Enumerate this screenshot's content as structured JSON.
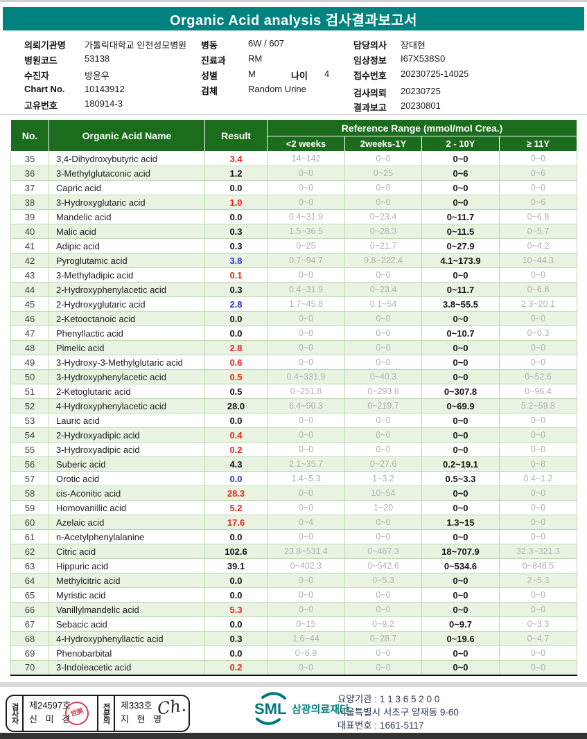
{
  "title": "Organic Acid analysis 검사결과보고서",
  "colors": {
    "teal": "#00827e",
    "header_green": "#1b6c1d",
    "row_green": "#e9f3e2",
    "grid_green": "#bcd9ae",
    "gray_ref": "#b0b0b0",
    "red": "#e8251d",
    "blue": "#2233cc",
    "navy": "#2c3a55",
    "seal_red": "#d04055"
  },
  "patient": {
    "col1": [
      {
        "label": "의뢰기관명",
        "value": "가톨릭대학교 인천성모병원"
      },
      {
        "label": "병원코드",
        "value": "53138"
      },
      {
        "label": "수진자",
        "value": "방윤우"
      },
      {
        "label": "Chart No.",
        "value": "10143912"
      },
      {
        "label": "고유번호",
        "value": "180914-3"
      }
    ],
    "col2": [
      {
        "label": "병동",
        "value": "6W / 607"
      },
      {
        "label": "진료과",
        "value": "RM"
      },
      {
        "label": "성별",
        "value": "M",
        "label2": "나이",
        "value2": "4"
      },
      {
        "label": "검체",
        "value": "Random Urine"
      }
    ],
    "col3": [
      {
        "label": "담당의사",
        "value": "장대현"
      },
      {
        "label": "임상정보",
        "value": "I67X538S0"
      },
      {
        "label": "접수번호",
        "value": "20230725-14025"
      },
      {
        "label": "검사의뢰",
        "value": "20230725"
      },
      {
        "label": "결과보고",
        "value": "20230801"
      }
    ]
  },
  "table": {
    "col_no": "No.",
    "col_name": "Organic Acid Name",
    "col_result": "Result",
    "ref_header": "Reference Range (mmol/mol Crea.)",
    "ref_cols": [
      "<2 weeks",
      "2weeks-1Y",
      "2 - 10Y",
      "≥ 11Y"
    ],
    "rows": [
      {
        "no": "35",
        "name": "3,4-Dihydroxybutyric acid",
        "result": "3.4",
        "flag": "red",
        "refs": [
          "14~142",
          "0~0",
          "0~0",
          "0~0"
        ]
      },
      {
        "no": "36",
        "name": "3-Methylglutaconic acid",
        "result": "1.2",
        "flag": "black",
        "refs": [
          "0~0",
          "0~25",
          "0~6",
          "0~6"
        ]
      },
      {
        "no": "37",
        "name": "Capric acid",
        "result": "0.0",
        "flag": "black",
        "refs": [
          "0~0",
          "0~0",
          "0~0",
          "0~0"
        ]
      },
      {
        "no": "38",
        "name": "3-Hydroxyglutaric acid",
        "result": "1.0",
        "flag": "red",
        "refs": [
          "0~0",
          "0~0",
          "0~0",
          "0~6"
        ]
      },
      {
        "no": "39",
        "name": "Mandelic acid",
        "result": "0.0",
        "flag": "black",
        "refs": [
          "0.4~31.9",
          "0~23.4",
          "0~11.7",
          "0~6.8"
        ]
      },
      {
        "no": "40",
        "name": "Malic acid",
        "result": "0.3",
        "flag": "black",
        "refs": [
          "1.5~36.5",
          "0~28.3",
          "0~11.5",
          "0~5.7"
        ]
      },
      {
        "no": "41",
        "name": "Adipic acid",
        "result": "0.3",
        "flag": "black",
        "refs": [
          "0~25",
          "0~21.7",
          "0~27.9",
          "0~4.2"
        ]
      },
      {
        "no": "42",
        "name": "Pyroglutamic acid",
        "result": "3.8",
        "flag": "blue",
        "refs": [
          "0.7~94.7",
          "9.8~222.4",
          "4.1~173.9",
          "10~44.3"
        ]
      },
      {
        "no": "43",
        "name": "3-Methyladipic acid",
        "result": "0.1",
        "flag": "red",
        "refs": [
          "0~0",
          "0~0",
          "0~0",
          "0~0"
        ]
      },
      {
        "no": "44",
        "name": "2-Hydroxyphenylacetic acid",
        "result": "0.3",
        "flag": "black",
        "refs": [
          "0.4~31.9",
          "0~23.4",
          "0~11.7",
          "0~6.8"
        ]
      },
      {
        "no": "45",
        "name": "2-Hydroxyglutaric acid",
        "result": "2.8",
        "flag": "blue",
        "refs": [
          "1.7~45.8",
          "0.1~54",
          "3.8~55.5",
          "2.3~20.1"
        ]
      },
      {
        "no": "46",
        "name": "2-Ketooctanoic acid",
        "result": "0.0",
        "flag": "black",
        "refs": [
          "0~0",
          "0~0",
          "0~0",
          "0~0"
        ]
      },
      {
        "no": "47",
        "name": "Phenyllactic acid",
        "result": "0.0",
        "flag": "black",
        "refs": [
          "0~0",
          "0~0",
          "0~10.7",
          "0~0.3"
        ]
      },
      {
        "no": "48",
        "name": "Pimelic acid",
        "result": "2.8",
        "flag": "red",
        "refs": [
          "0~0",
          "0~0",
          "0~0",
          "0~0"
        ]
      },
      {
        "no": "49",
        "name": "3-Hydroxy-3-Methylglutaric acid",
        "result": "0.6",
        "flag": "red",
        "refs": [
          "0~0",
          "0~0",
          "0~0",
          "0~0"
        ]
      },
      {
        "no": "50",
        "name": "3-Hydroxyphenylacetic acid",
        "result": "0.5",
        "flag": "red",
        "refs": [
          "0.4~331.9",
          "0~40.3",
          "0~0",
          "0~52.6"
        ]
      },
      {
        "no": "51",
        "name": "2-Ketoglutaric acid",
        "result": "0.5",
        "flag": "black",
        "refs": [
          "0~251.8",
          "0~293.6",
          "0~307.8",
          "0~96.4"
        ]
      },
      {
        "no": "52",
        "name": "4-Hydroxyphenylacetic acid",
        "result": "28.0",
        "flag": "black",
        "refs": [
          "6.4~90.3",
          "0~219.7",
          "0~69.9",
          "5.2~59.8"
        ]
      },
      {
        "no": "53",
        "name": "Lauric acid",
        "result": "0.0",
        "flag": "black",
        "refs": [
          "0~0",
          "0~0",
          "0~0",
          "0~0"
        ]
      },
      {
        "no": "54",
        "name": "2-Hydroxyadipic acid",
        "result": "0.4",
        "flag": "red",
        "refs": [
          "0~0",
          "0~0",
          "0~0",
          "0~0"
        ]
      },
      {
        "no": "55",
        "name": "3-Hydroxyadipic acid",
        "result": "0.2",
        "flag": "red",
        "refs": [
          "0~0",
          "0~0",
          "0~0",
          "0~0"
        ]
      },
      {
        "no": "56",
        "name": "Suberic acid",
        "result": "4.3",
        "flag": "black",
        "refs": [
          "2.1~35.7",
          "0~27.6",
          "0.2~19.1",
          "0~8"
        ]
      },
      {
        "no": "57",
        "name": "Orotic acid",
        "result": "0.0",
        "flag": "blue",
        "refs": [
          "1.4~5.3",
          "1~3.2",
          "0.5~3.3",
          "0.4~1.2"
        ]
      },
      {
        "no": "58",
        "name": "cis-Aconitic acid",
        "result": "28.3",
        "flag": "red",
        "refs": [
          "0~0",
          "10~54",
          "0~0",
          "0~0"
        ]
      },
      {
        "no": "59",
        "name": "Homovanillic acid",
        "result": "5.2",
        "flag": "red",
        "refs": [
          "0~0",
          "1~20",
          "0~0",
          "0~0"
        ]
      },
      {
        "no": "60",
        "name": "Azelaic acid",
        "result": "17.6",
        "flag": "red",
        "refs": [
          "0~4",
          "0~0",
          "1.3~15",
          "0~0"
        ]
      },
      {
        "no": "61",
        "name": "n-Acetylphenylalanine",
        "result": "0.0",
        "flag": "black",
        "refs": [
          "0~0",
          "0~0",
          "0~0",
          "0~0"
        ]
      },
      {
        "no": "62",
        "name": "Citric acid",
        "result": "102.6",
        "flag": "black",
        "refs": [
          "23.8~531.4",
          "0~467.3",
          "18~707.9",
          "32.3~321.3"
        ]
      },
      {
        "no": "63",
        "name": "Hippuric acid",
        "result": "39.1",
        "flag": "black",
        "refs": [
          "0~402.3",
          "0~542.6",
          "0~534.6",
          "0~848.5"
        ]
      },
      {
        "no": "64",
        "name": "Methylcitric acid",
        "result": "0.0",
        "flag": "black",
        "refs": [
          "0~0",
          "0~5.3",
          "0~0",
          "2~5.3"
        ]
      },
      {
        "no": "65",
        "name": "Myristic acid",
        "result": "0.0",
        "flag": "black",
        "refs": [
          "0~0",
          "0~0",
          "0~0",
          "0~0"
        ]
      },
      {
        "no": "66",
        "name": "Vanillylmandelic acid",
        "result": "5.3",
        "flag": "red",
        "refs": [
          "0~0",
          "0~0",
          "0~0",
          "0~0"
        ]
      },
      {
        "no": "67",
        "name": "Sebacic acid",
        "result": "0.0",
        "flag": "black",
        "refs": [
          "0~15",
          "0~9.2",
          "0~9.7",
          "0~3.3"
        ]
      },
      {
        "no": "68",
        "name": "4-Hydroxyphenyllactic acid",
        "result": "0.3",
        "flag": "black",
        "refs": [
          "1.6~44",
          "0~28.7",
          "0~19.6",
          "0~4.7"
        ]
      },
      {
        "no": "69",
        "name": "Phenobarbital",
        "result": "0.0",
        "flag": "black",
        "refs": [
          "0~6.9",
          "0~0",
          "0~0",
          "0~0"
        ]
      },
      {
        "no": "70",
        "name": "3-Indoleacetic acid",
        "result": "0.2",
        "flag": "red",
        "refs": [
          "0~0",
          "0~0",
          "0~0",
          "0~0"
        ]
      }
    ]
  },
  "footer": {
    "examiner_role": "검사자",
    "examiner_no": "제24597호",
    "examiner_name": "신 미 경",
    "examiner_seal": "世美",
    "specialist_role": "전문의",
    "specialist_no": "제333호",
    "specialist_name": "지 현 영",
    "specialist_signature": "Ch.",
    "sml_logo_text": "SML",
    "sml_org_name": "삼광의료재단",
    "org_line1": "요양기관 : 1 1 3 6 5 2 0 0",
    "org_line2": "서울특별시 서초구 양재동 9-60",
    "org_line3": "대표번호 : 1661-5117"
  }
}
